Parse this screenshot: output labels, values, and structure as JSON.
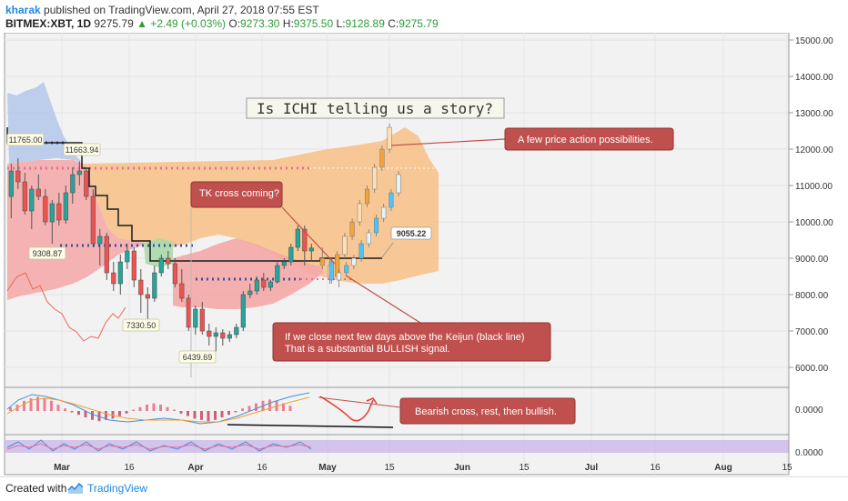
{
  "header": {
    "author": "kharak",
    "published": "published on TradingView.com, April 27, 2018 07:55 EST",
    "symbol": "BITMEX:XBT, 1D",
    "last": "9275.79",
    "change": "▲ +2.49 (+0.03%)",
    "open_label": "O:",
    "open": "9273.30",
    "high_label": "H:",
    "high": "9375.50",
    "low_label": "L:",
    "low": "9128.89",
    "close_label": "C:",
    "close": "9275.79"
  },
  "footer": {
    "created_with": "Created with",
    "brand": "TradingView"
  },
  "colors": {
    "up": "#26a69a",
    "down": "#ef5350",
    "cloud_orange": "#f7c38c",
    "cloud_red": "#f4a7a7",
    "cloud_blue": "#a9c2e8",
    "note_fill": "#c0504d"
  },
  "chart_data": {
    "type": "candlestick",
    "title": "Is ICHI telling us a story?",
    "y_axis_ticks": [
      "15000.00",
      "14000.00",
      "13000.00",
      "12000.00",
      "11000.00",
      "10000.00",
      "9000.00",
      "8000.00",
      "7000.00",
      "6000.00"
    ],
    "x_axis_ticks": [
      "Mar",
      "16",
      "Apr",
      "16",
      "May",
      "15",
      "Jun",
      "15",
      "Jul",
      "16",
      "Aug",
      "15"
    ],
    "ylim": [
      5500,
      15000
    ],
    "price_labels": [
      {
        "id": "lbl1",
        "text": "11765.00",
        "price": 11765
      },
      {
        "id": "lbl2",
        "text": "11663.94",
        "price": 11664
      },
      {
        "id": "lbl3",
        "text": "9308.87",
        "price": 9309
      },
      {
        "id": "lbl4",
        "text": "7330.50",
        "price": 7330
      },
      {
        "id": "lbl5",
        "text": "6439.69",
        "price": 6440
      },
      {
        "id": "lbl6",
        "text": "9055.22",
        "price": 9055
      }
    ],
    "annotations": [
      "A few price action possibilities.",
      "TK cross coming?",
      "If we close next few days above the Keijun (black line)",
      "That is a substantial BULLISH signal.",
      "Bearish cross, rest, then bullish."
    ],
    "macd_tick": "0.0000",
    "stoch_tick": "0.0000"
  }
}
